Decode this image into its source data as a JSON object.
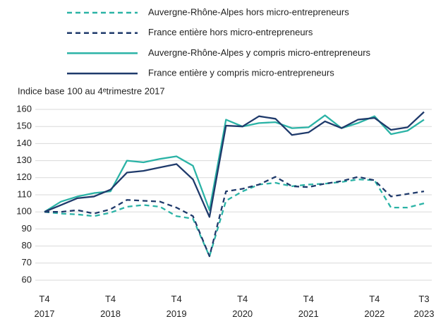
{
  "chart_data": {
    "type": "line",
    "y_label": "Indice base 100 au 4ᵉtrimestre 2017",
    "categories": [
      [
        "T4",
        "2017"
      ],
      null,
      null,
      null,
      [
        "T4",
        "2018"
      ],
      null,
      null,
      null,
      [
        "T4",
        "2019"
      ],
      null,
      null,
      null,
      [
        "T4",
        "2020"
      ],
      null,
      null,
      null,
      [
        "T4",
        "2021"
      ],
      null,
      null,
      null,
      [
        "T4",
        "2022"
      ],
      null,
      null,
      [
        "T3",
        "2023"
      ]
    ],
    "series": [
      {
        "name": "Auvergne-Rhône-Alpes hors micro-entrepreneurs",
        "color": "#2bb3a6",
        "dashed": true,
        "values": [
          100,
          99,
          98.5,
          97.5,
          99.5,
          103,
          104,
          103,
          97.5,
          96,
          74,
          106.5,
          112,
          116,
          117,
          115,
          116,
          116.5,
          117.5,
          119,
          118.5,
          102.5,
          102.5,
          105
        ]
      },
      {
        "name": "France entière hors micro-entrepreneurs",
        "color": "#1f3a6b",
        "dashed": true,
        "values": [
          100,
          100,
          101,
          99,
          101.5,
          107,
          106.5,
          106,
          102.5,
          97.5,
          74,
          112,
          113.5,
          116,
          120.5,
          115,
          114.5,
          116.5,
          118,
          120.5,
          118.5,
          109,
          110.5,
          112
        ]
      },
      {
        "name": "Auvergne-Rhône-Alpes y compris micro-entrepreneurs",
        "color": "#2bb3a6",
        "dashed": false,
        "values": [
          100,
          106,
          109,
          111,
          112,
          130,
          129,
          131,
          132.5,
          127,
          101,
          154,
          150,
          152,
          152.5,
          149,
          149.5,
          156.5,
          149,
          152,
          156,
          145.5,
          147.5,
          154
        ]
      },
      {
        "name": "France entière y compris micro-entrepreneurs",
        "color": "#1f3a6b",
        "dashed": false,
        "values": [
          100,
          104,
          108,
          109,
          113,
          123,
          124,
          126,
          128,
          119,
          97,
          150.5,
          150,
          156,
          154.5,
          145,
          146.5,
          153,
          149,
          154,
          155,
          148,
          149.5,
          158.5
        ]
      }
    ],
    "ylim": [
      60,
      160
    ],
    "yticks": [
      60,
      70,
      80,
      90,
      100,
      110,
      120,
      130,
      140,
      150,
      160
    ],
    "grid": true
  }
}
